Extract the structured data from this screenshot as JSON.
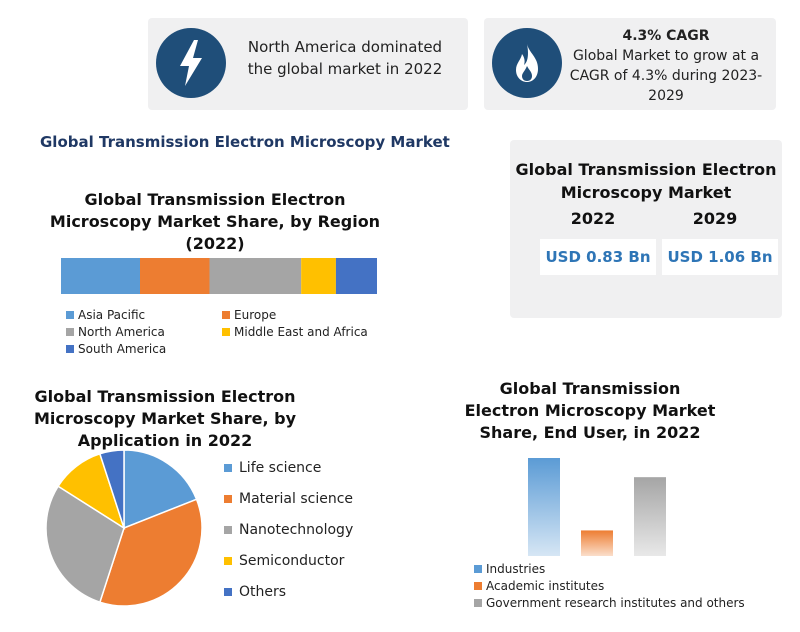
{
  "cards": {
    "north_america": {
      "icon": "lightning-bolt-icon",
      "text": "North America dominated the global market in 2022"
    },
    "cagr": {
      "icon": "flame-icon",
      "title": "4.3% CAGR",
      "text": "Global Market to grow at a CAGR of 4.3% during 2023-2029"
    }
  },
  "section_title": "Global Transmission Electron Microscopy Market",
  "kpi": {
    "title": "Global Transmission Electron Microscopy Market",
    "year1": "2022",
    "year2": "2029",
    "value1": "USD 0.83 Bn",
    "value2": "USD 1.06 Bn"
  },
  "colors": {
    "navy": "#1f4e79",
    "blue": "#5b9bd5",
    "orange": "#ed7d31",
    "gray": "#a5a5a5",
    "yellow": "#ffc000",
    "dark_blue": "#4472c4"
  },
  "chart_data": [
    {
      "type": "bar",
      "stacked": "horizontal-100%",
      "title": "Global Transmission Electron Microscopy Market Share, by Region (2022)",
      "categories": [
        "Asia Pacific",
        "Europe",
        "North America",
        "Middle East and Africa",
        "South America"
      ],
      "values": [
        25,
        22,
        29,
        11,
        13
      ],
      "legend_position": "bottom",
      "grid": false
    },
    {
      "type": "pie",
      "title": "Global Transmission Electron Microscopy Market Share, by Application in 2022",
      "categories": [
        "Life science",
        "Material science",
        "Nanotechnology",
        "Semiconductor",
        "Others"
      ],
      "values": [
        19,
        36,
        29,
        11,
        5
      ],
      "legend_position": "right"
    },
    {
      "type": "bar",
      "title": "Global Transmission Electron Microscopy Market Share, End User, in 2022",
      "categories": [
        "Industries",
        "Academic institutes",
        "Government research institutes and others"
      ],
      "values": [
        46,
        12,
        37
      ],
      "legend_position": "bottom",
      "grid": false
    }
  ]
}
